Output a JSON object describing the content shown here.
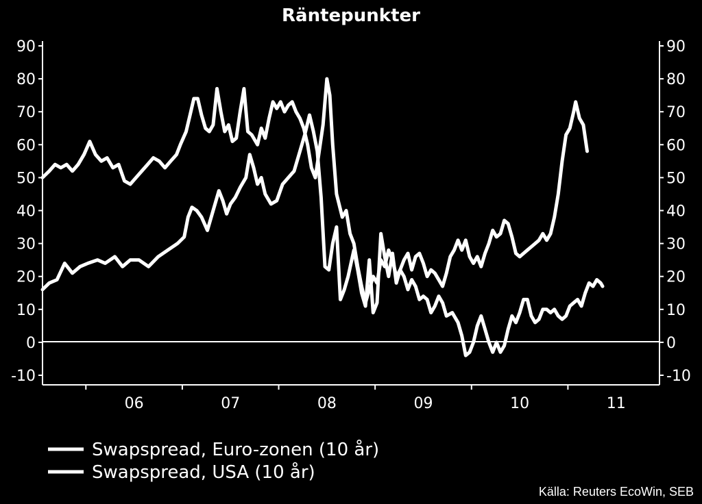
{
  "chart_data": {
    "type": "line",
    "title": "Räntepunkter",
    "source": "Källa: Reuters EcoWin, SEB",
    "xlabel": "",
    "ylabel": "",
    "ylim": [
      -10,
      90
    ],
    "y_ticks": [
      90,
      80,
      70,
      60,
      50,
      40,
      30,
      20,
      10,
      0,
      -10
    ],
    "y_tick_labels": [
      "90",
      "80",
      "70",
      "60",
      "50",
      "40",
      "30",
      "20",
      "10",
      "0",
      "-10"
    ],
    "x_tick_labels": [
      "06",
      "07",
      "08",
      "09",
      "10",
      "11"
    ],
    "x_range": [
      2005.55,
      2011.95
    ],
    "grid": false,
    "zero_line": true,
    "axes": "left and right, identical scale",
    "legend_position": "bottom-left",
    "colors": {
      "background": "#000000",
      "foreground": "#ffffff",
      "series": "#ffffff"
    },
    "series": [
      {
        "name": "Swapspread, Euro-zonen (10 år)",
        "points": [
          [
            2005.55,
            16
          ],
          [
            2005.62,
            18
          ],
          [
            2005.7,
            19
          ],
          [
            2005.78,
            24
          ],
          [
            2005.86,
            21
          ],
          [
            2005.94,
            23
          ],
          [
            2006.02,
            24
          ],
          [
            2006.12,
            25
          ],
          [
            2006.2,
            24
          ],
          [
            2006.3,
            26
          ],
          [
            2006.38,
            23
          ],
          [
            2006.46,
            25
          ],
          [
            2006.55,
            25
          ],
          [
            2006.65,
            23
          ],
          [
            2006.75,
            26
          ],
          [
            2006.85,
            28
          ],
          [
            2006.95,
            30
          ],
          [
            2007.02,
            32
          ],
          [
            2007.06,
            38
          ],
          [
            2007.1,
            41
          ],
          [
            2007.15,
            40
          ],
          [
            2007.2,
            38
          ],
          [
            2007.26,
            34
          ],
          [
            2007.32,
            40
          ],
          [
            2007.38,
            46
          ],
          [
            2007.42,
            43
          ],
          [
            2007.46,
            39
          ],
          [
            2007.5,
            42
          ],
          [
            2007.55,
            44
          ],
          [
            2007.6,
            47
          ],
          [
            2007.66,
            50
          ],
          [
            2007.7,
            57
          ],
          [
            2007.74,
            53
          ],
          [
            2007.78,
            48
          ],
          [
            2007.82,
            50
          ],
          [
            2007.86,
            45
          ],
          [
            2007.92,
            42
          ],
          [
            2007.98,
            43
          ],
          [
            2008.04,
            48
          ],
          [
            2008.1,
            50
          ],
          [
            2008.16,
            52
          ],
          [
            2008.22,
            58
          ],
          [
            2008.27,
            63
          ],
          [
            2008.32,
            69
          ],
          [
            2008.36,
            64
          ],
          [
            2008.4,
            58
          ],
          [
            2008.44,
            44
          ],
          [
            2008.48,
            23
          ],
          [
            2008.52,
            22
          ],
          [
            2008.56,
            30
          ],
          [
            2008.6,
            35
          ],
          [
            2008.64,
            13
          ],
          [
            2008.68,
            16
          ],
          [
            2008.72,
            20
          ],
          [
            2008.78,
            28
          ],
          [
            2008.82,
            22
          ],
          [
            2008.86,
            15
          ],
          [
            2008.9,
            11
          ],
          [
            2008.94,
            25
          ],
          [
            2008.98,
            9
          ],
          [
            2009.02,
            12
          ],
          [
            2009.06,
            33
          ],
          [
            2009.1,
            26
          ],
          [
            2009.14,
            20
          ],
          [
            2009.18,
            27
          ],
          [
            2009.22,
            18
          ],
          [
            2009.26,
            22
          ],
          [
            2009.3,
            20
          ],
          [
            2009.34,
            16
          ],
          [
            2009.38,
            19
          ],
          [
            2009.42,
            17
          ],
          [
            2009.46,
            13
          ],
          [
            2009.5,
            14
          ],
          [
            2009.54,
            13
          ],
          [
            2009.58,
            9
          ],
          [
            2009.62,
            11
          ],
          [
            2009.66,
            14
          ],
          [
            2009.7,
            12
          ],
          [
            2009.74,
            8
          ],
          [
            2009.8,
            9
          ],
          [
            2009.86,
            6
          ],
          [
            2009.9,
            2
          ],
          [
            2009.94,
            -4
          ],
          [
            2009.98,
            -3
          ],
          [
            2010.02,
            0
          ],
          [
            2010.06,
            5
          ],
          [
            2010.1,
            8
          ],
          [
            2010.14,
            4
          ],
          [
            2010.18,
            0
          ],
          [
            2010.22,
            -3
          ],
          [
            2010.26,
            0
          ],
          [
            2010.3,
            -3
          ],
          [
            2010.34,
            -1
          ],
          [
            2010.38,
            4
          ],
          [
            2010.42,
            8
          ],
          [
            2010.46,
            6
          ],
          [
            2010.5,
            9
          ],
          [
            2010.54,
            13
          ],
          [
            2010.58,
            13
          ],
          [
            2010.62,
            8
          ],
          [
            2010.66,
            6
          ],
          [
            2010.7,
            7
          ],
          [
            2010.74,
            10
          ],
          [
            2010.78,
            10
          ],
          [
            2010.82,
            9
          ],
          [
            2010.86,
            10
          ],
          [
            2010.9,
            8
          ],
          [
            2010.94,
            7
          ],
          [
            2010.98,
            8
          ],
          [
            2011.02,
            11
          ],
          [
            2011.06,
            12
          ],
          [
            2011.1,
            13
          ],
          [
            2011.14,
            11
          ],
          [
            2011.18,
            15
          ],
          [
            2011.22,
            18
          ],
          [
            2011.26,
            17
          ],
          [
            2011.3,
            19
          ],
          [
            2011.34,
            18
          ],
          [
            2011.36,
            17
          ]
        ]
      },
      {
        "name": "Swapspread, USA (10 år)",
        "points": [
          [
            2005.55,
            50
          ],
          [
            2005.62,
            52
          ],
          [
            2005.68,
            54
          ],
          [
            2005.74,
            53
          ],
          [
            2005.8,
            54
          ],
          [
            2005.86,
            52
          ],
          [
            2005.92,
            54
          ],
          [
            2005.98,
            57
          ],
          [
            2006.04,
            61
          ],
          [
            2006.1,
            57
          ],
          [
            2006.16,
            55
          ],
          [
            2006.22,
            56
          ],
          [
            2006.28,
            53
          ],
          [
            2006.34,
            54
          ],
          [
            2006.4,
            49
          ],
          [
            2006.46,
            48
          ],
          [
            2006.52,
            50
          ],
          [
            2006.58,
            52
          ],
          [
            2006.64,
            54
          ],
          [
            2006.7,
            56
          ],
          [
            2006.76,
            55
          ],
          [
            2006.82,
            53
          ],
          [
            2006.88,
            55
          ],
          [
            2006.94,
            57
          ],
          [
            2006.98,
            60
          ],
          [
            2007.04,
            64
          ],
          [
            2007.08,
            69
          ],
          [
            2007.12,
            74
          ],
          [
            2007.16,
            74
          ],
          [
            2007.2,
            69
          ],
          [
            2007.24,
            65
          ],
          [
            2007.28,
            64
          ],
          [
            2007.32,
            66
          ],
          [
            2007.36,
            77
          ],
          [
            2007.4,
            70
          ],
          [
            2007.44,
            64
          ],
          [
            2007.48,
            66
          ],
          [
            2007.52,
            61
          ],
          [
            2007.56,
            62
          ],
          [
            2007.6,
            70
          ],
          [
            2007.64,
            77
          ],
          [
            2007.68,
            64
          ],
          [
            2007.72,
            63
          ],
          [
            2007.78,
            60
          ],
          [
            2007.82,
            65
          ],
          [
            2007.86,
            62
          ],
          [
            2007.9,
            68
          ],
          [
            2007.94,
            73
          ],
          [
            2007.98,
            71
          ],
          [
            2008.02,
            73
          ],
          [
            2008.06,
            70
          ],
          [
            2008.1,
            72
          ],
          [
            2008.14,
            73
          ],
          [
            2008.18,
            70
          ],
          [
            2008.22,
            68
          ],
          [
            2008.26,
            65
          ],
          [
            2008.3,
            60
          ],
          [
            2008.34,
            53
          ],
          [
            2008.38,
            50
          ],
          [
            2008.42,
            58
          ],
          [
            2008.46,
            66
          ],
          [
            2008.5,
            80
          ],
          [
            2008.53,
            75
          ],
          [
            2008.56,
            60
          ],
          [
            2008.6,
            45
          ],
          [
            2008.66,
            38
          ],
          [
            2008.7,
            40
          ],
          [
            2008.74,
            33
          ],
          [
            2008.78,
            30
          ],
          [
            2008.82,
            23
          ],
          [
            2008.86,
            17
          ],
          [
            2008.9,
            12
          ],
          [
            2008.94,
            16
          ],
          [
            2008.98,
            20
          ],
          [
            2009.02,
            18
          ],
          [
            2009.06,
            25
          ],
          [
            2009.1,
            23
          ],
          [
            2009.14,
            28
          ],
          [
            2009.18,
            25
          ],
          [
            2009.22,
            20
          ],
          [
            2009.26,
            22
          ],
          [
            2009.3,
            25
          ],
          [
            2009.34,
            27
          ],
          [
            2009.38,
            22
          ],
          [
            2009.42,
            26
          ],
          [
            2009.46,
            27
          ],
          [
            2009.5,
            24
          ],
          [
            2009.54,
            20
          ],
          [
            2009.58,
            22
          ],
          [
            2009.62,
            21
          ],
          [
            2009.66,
            19
          ],
          [
            2009.7,
            17
          ],
          [
            2009.74,
            21
          ],
          [
            2009.78,
            26
          ],
          [
            2009.82,
            28
          ],
          [
            2009.86,
            31
          ],
          [
            2009.9,
            28
          ],
          [
            2009.94,
            31
          ],
          [
            2009.98,
            26
          ],
          [
            2010.02,
            24
          ],
          [
            2010.06,
            26
          ],
          [
            2010.1,
            23
          ],
          [
            2010.14,
            27
          ],
          [
            2010.18,
            30
          ],
          [
            2010.22,
            34
          ],
          [
            2010.26,
            32
          ],
          [
            2010.3,
            33
          ],
          [
            2010.34,
            37
          ],
          [
            2010.38,
            36
          ],
          [
            2010.42,
            32
          ],
          [
            2010.46,
            27
          ],
          [
            2010.5,
            26
          ],
          [
            2010.54,
            27
          ],
          [
            2010.58,
            28
          ],
          [
            2010.62,
            29
          ],
          [
            2010.66,
            30
          ],
          [
            2010.7,
            31
          ],
          [
            2010.74,
            33
          ],
          [
            2010.78,
            31
          ],
          [
            2010.82,
            33
          ],
          [
            2010.86,
            38
          ],
          [
            2010.9,
            45
          ],
          [
            2010.94,
            55
          ],
          [
            2010.98,
            63
          ],
          [
            2011.02,
            65
          ],
          [
            2011.06,
            70
          ],
          [
            2011.08,
            73
          ],
          [
            2011.12,
            68
          ],
          [
            2011.16,
            66
          ],
          [
            2011.2,
            58
          ]
        ]
      }
    ]
  }
}
